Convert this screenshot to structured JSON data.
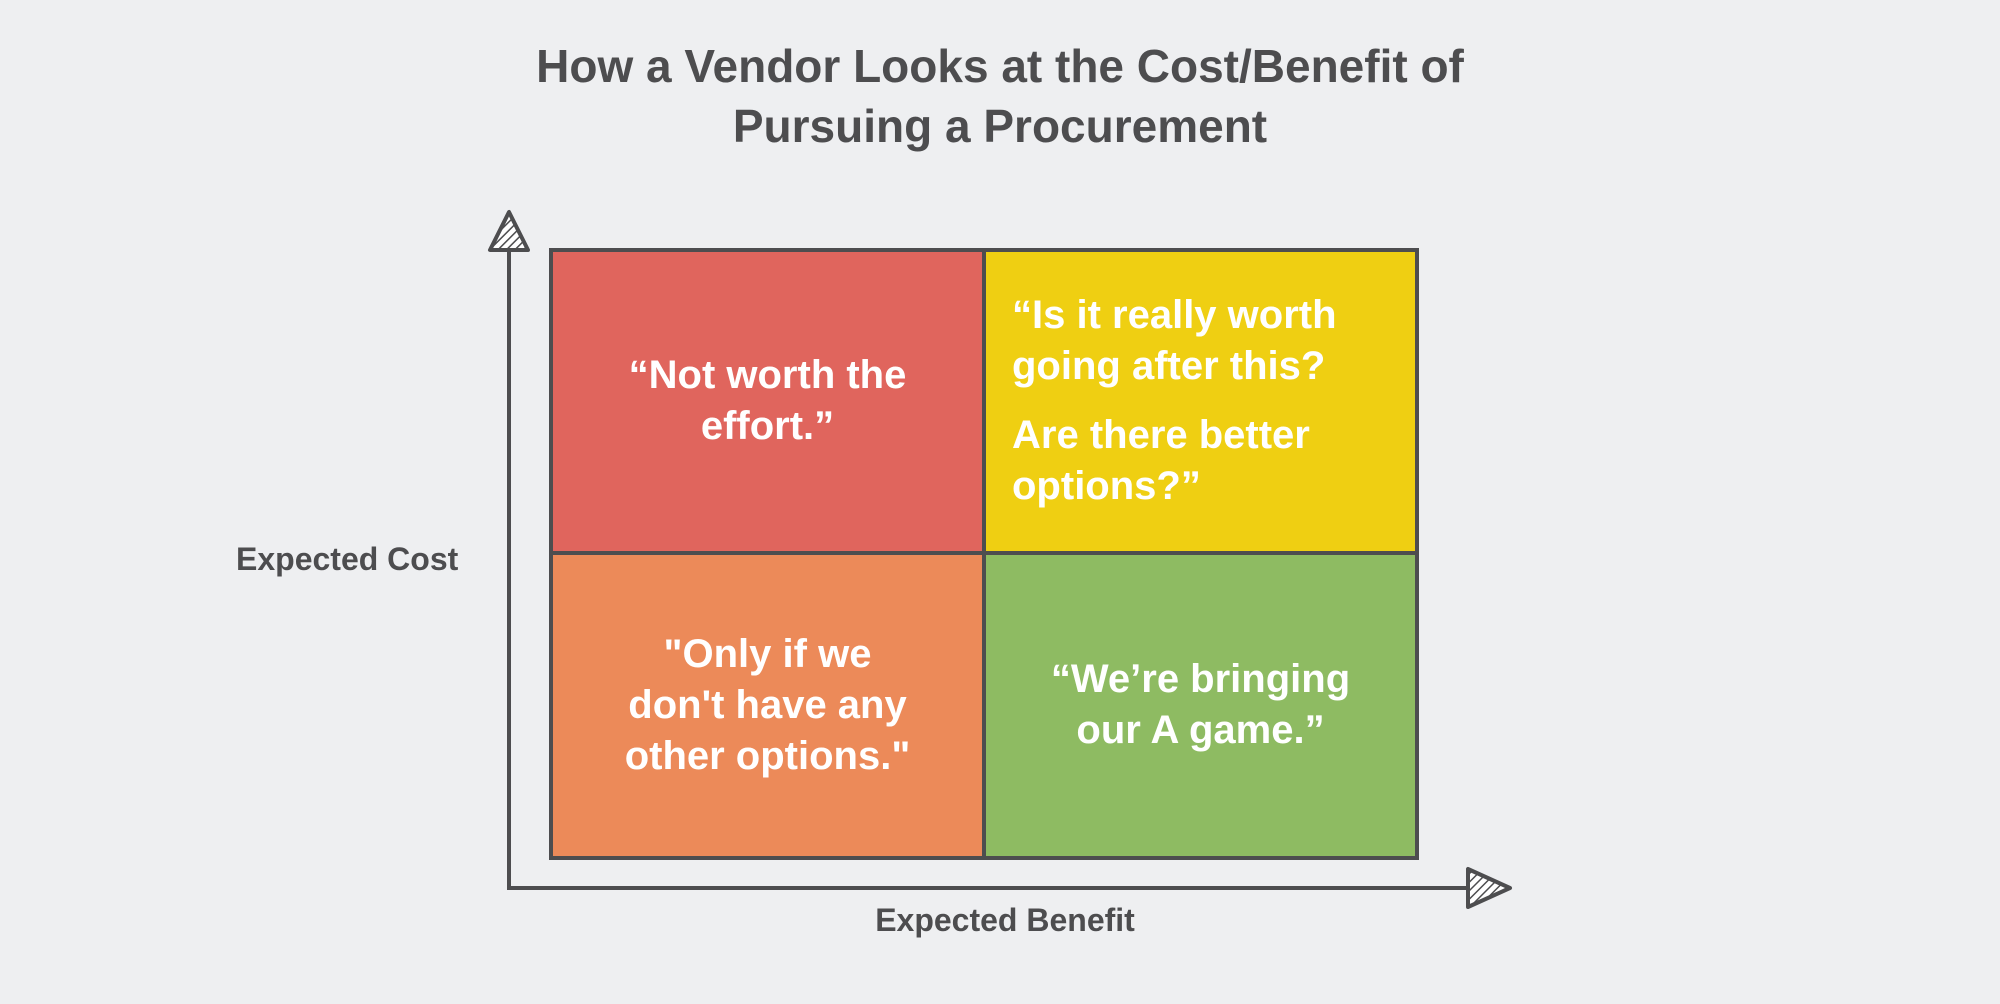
{
  "title": {
    "line1": "How a Vendor Looks at the Cost/Benefit of",
    "line2": "Pursuing a Procurement"
  },
  "axes": {
    "y_label": "Expected Cost",
    "x_label": "Expected Benefit"
  },
  "quadrants": {
    "top_left": {
      "lines": [
        "“Not worth the",
        "effort.”"
      ],
      "color": "#e0655d"
    },
    "top_right": {
      "p1": [
        "“Is it really worth",
        "going after this?"
      ],
      "p2": [
        "Are there better",
        "options?”"
      ],
      "color": "#efcf12"
    },
    "bottom_left": {
      "lines": [
        "\"Only if we",
        "don't have any",
        "other options.\""
      ],
      "color": "#ec8a59"
    },
    "bottom_right": {
      "lines": [
        "“We’re bringing",
        "our A game.”"
      ],
      "color": "#8ebb62"
    }
  },
  "colors": {
    "background": "#eeeff1",
    "line": "#4d4d4f",
    "text_on_quadrant": "#ffffff"
  }
}
